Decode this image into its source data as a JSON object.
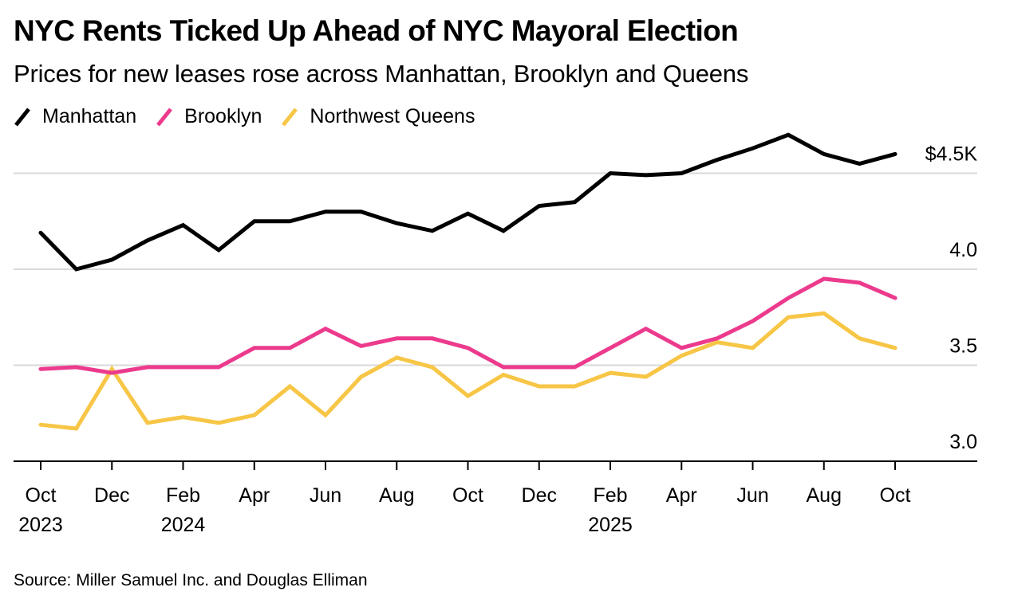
{
  "header": {
    "title": "NYC Rents Ticked Up Ahead of NYC Mayoral Election",
    "subtitle": "Prices for new leases rose across Manhattan, Brooklyn and Queens"
  },
  "legend": [
    {
      "label": "Manhattan",
      "color": "#000000"
    },
    {
      "label": "Brooklyn",
      "color": "#ec3a8d"
    },
    {
      "label": "Northwest Queens",
      "color": "#f7c646"
    }
  ],
  "footer": {
    "source": "Source: Miller Samuel Inc. and Douglas Elliman"
  },
  "chart_data": {
    "type": "line",
    "title": "NYC Rents Ticked Up Ahead of NYC Mayoral Election",
    "subtitle": "Prices for new leases rose across Manhattan, Brooklyn and Queens",
    "xlabel": "",
    "ylabel": "",
    "x": [
      "2023-10",
      "2023-11",
      "2023-12",
      "2024-01",
      "2024-02",
      "2024-03",
      "2024-04",
      "2024-05",
      "2024-06",
      "2024-07",
      "2024-08",
      "2024-09",
      "2024-10",
      "2024-11",
      "2024-12",
      "2025-01",
      "2025-02",
      "2025-03",
      "2025-04",
      "2025-05",
      "2025-06",
      "2025-07",
      "2025-08",
      "2025-09",
      "2025-10"
    ],
    "series": [
      {
        "name": "Manhattan",
        "color": "#000000",
        "values": [
          4.19,
          4.0,
          4.05,
          4.15,
          4.23,
          4.1,
          4.25,
          4.25,
          4.3,
          4.3,
          4.24,
          4.2,
          4.29,
          4.2,
          4.33,
          4.35,
          4.5,
          4.49,
          4.5,
          4.57,
          4.63,
          4.7,
          4.6,
          4.55,
          4.6
        ]
      },
      {
        "name": "Brooklyn",
        "color": "#ec3a8d",
        "values": [
          3.48,
          3.49,
          3.46,
          3.49,
          3.49,
          3.49,
          3.59,
          3.59,
          3.69,
          3.6,
          3.64,
          3.64,
          3.59,
          3.49,
          3.49,
          3.49,
          3.59,
          3.69,
          3.59,
          3.64,
          3.73,
          3.85,
          3.95,
          3.93,
          3.85
        ]
      },
      {
        "name": "Northwest Queens",
        "color": "#f7c646",
        "values": [
          3.19,
          3.17,
          3.48,
          3.2,
          3.23,
          3.2,
          3.24,
          3.39,
          3.24,
          3.44,
          3.54,
          3.49,
          3.34,
          3.45,
          3.39,
          3.39,
          3.46,
          3.44,
          3.55,
          3.62,
          3.59,
          3.75,
          3.77,
          3.64,
          3.59
        ]
      }
    ],
    "ylim": [
      3.0,
      4.75
    ],
    "yticks": [
      {
        "value": 3.0,
        "label": "3.0"
      },
      {
        "value": 3.5,
        "label": "3.5"
      },
      {
        "value": 4.0,
        "label": "4.0"
      },
      {
        "value": 4.5,
        "label": "$4.5K"
      }
    ],
    "xticks": [
      {
        "index": 0,
        "label": "Oct",
        "year": "2023"
      },
      {
        "index": 2,
        "label": "Dec",
        "year": ""
      },
      {
        "index": 4,
        "label": "Feb",
        "year": "2024"
      },
      {
        "index": 6,
        "label": "Apr",
        "year": ""
      },
      {
        "index": 8,
        "label": "Jun",
        "year": ""
      },
      {
        "index": 10,
        "label": "Aug",
        "year": ""
      },
      {
        "index": 12,
        "label": "Oct",
        "year": ""
      },
      {
        "index": 14,
        "label": "Dec",
        "year": ""
      },
      {
        "index": 16,
        "label": "Feb",
        "year": "2025"
      },
      {
        "index": 18,
        "label": "Apr",
        "year": ""
      },
      {
        "index": 20,
        "label": "Jun",
        "year": ""
      },
      {
        "index": 22,
        "label": "Aug",
        "year": ""
      },
      {
        "index": 24,
        "label": "Oct",
        "year": ""
      }
    ],
    "grid": true,
    "legend_position": "top-left",
    "y_axis_position": "right"
  }
}
